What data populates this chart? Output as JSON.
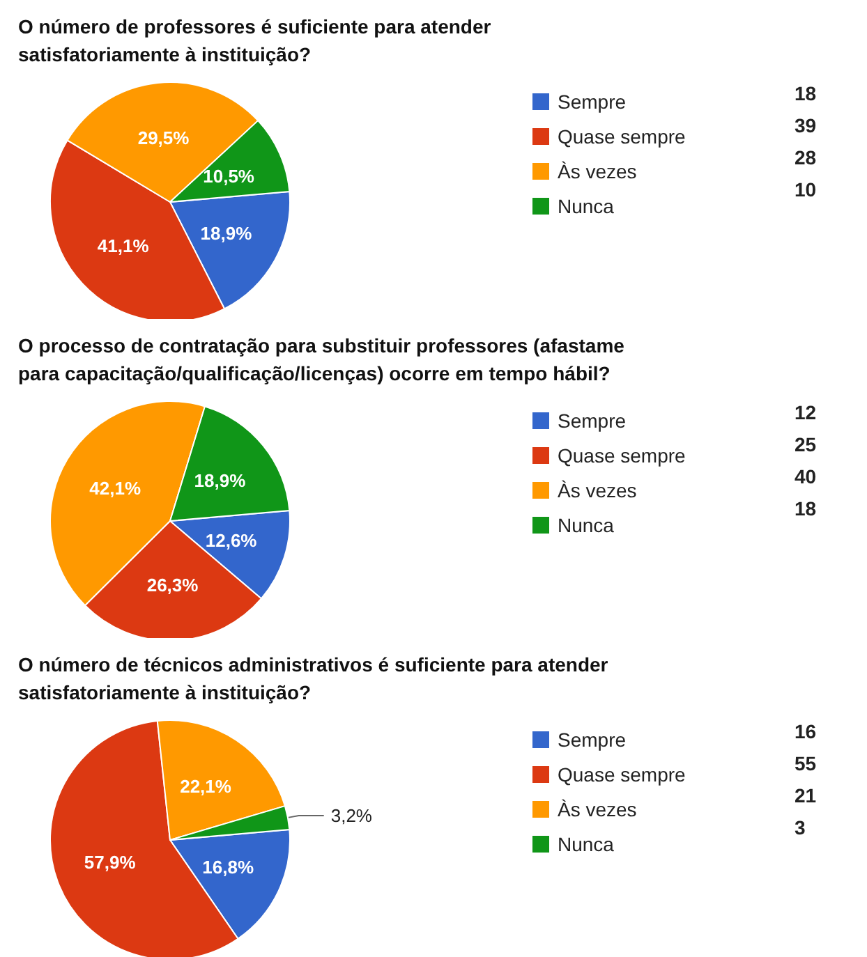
{
  "chart_data": [
    {
      "type": "pie",
      "title": "O número de professores é suficiente para atender\nsatisfatoriamente à instituição?",
      "categories": [
        "Sempre",
        "Quase sempre",
        "Às vezes",
        "Nunca"
      ],
      "values": [
        18.9,
        41.1,
        29.5,
        10.5
      ],
      "colors": [
        "#3366cc",
        "#dc3912",
        "#ff9900",
        "#109618"
      ],
      "value_labels": [
        "18,9%",
        "41,1%",
        "29,5%",
        "10,5%"
      ],
      "annotations": [
        "18",
        "39",
        "28",
        "10"
      ],
      "legend": "right"
    },
    {
      "type": "pie",
      "title": "O processo de contratação para substituir professores (afastame\npara capacitação/qualificação/licenças) ocorre em tempo hábil?",
      "categories": [
        "Sempre",
        "Quase sempre",
        "Às vezes",
        "Nunca"
      ],
      "values": [
        12.6,
        26.3,
        42.1,
        18.9
      ],
      "colors": [
        "#3366cc",
        "#dc3912",
        "#ff9900",
        "#109618"
      ],
      "value_labels": [
        "12,6%",
        "26,3%",
        "42,1%",
        "18,9%"
      ],
      "annotations": [
        "12",
        "25",
        "40",
        "18"
      ],
      "legend": "right"
    },
    {
      "type": "pie",
      "title": "O número de técnicos administrativos é suficiente para atender\nsatisfatoriamente à instituição?",
      "categories": [
        "Sempre",
        "Quase sempre",
        "Às vezes",
        "Nunca"
      ],
      "values": [
        16.8,
        57.9,
        22.1,
        3.2
      ],
      "colors": [
        "#3366cc",
        "#dc3912",
        "#ff9900",
        "#109618"
      ],
      "value_labels": [
        "16,8%",
        "57,9%",
        "22,1%",
        "3,2%"
      ],
      "annotations": [
        "16",
        "55",
        "21",
        "3"
      ],
      "legend": "right"
    }
  ]
}
